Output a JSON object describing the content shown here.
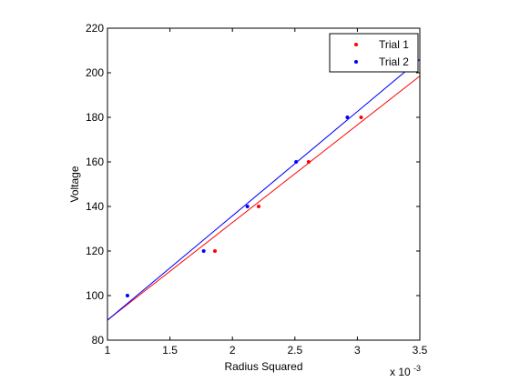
{
  "chart_data": {
    "type": "scatter",
    "title": "",
    "xlabel": "Radius Squared",
    "ylabel": "Voltage",
    "x_multiplier_label": "x 10",
    "x_multiplier_exponent": "-3",
    "xlim": [
      1,
      3.5
    ],
    "ylim": [
      80,
      220
    ],
    "xticks": [
      1,
      1.5,
      2,
      2.5,
      3,
      3.5
    ],
    "xtick_labels": [
      "1",
      "1.5",
      "2",
      "2.5",
      "3",
      "3.5"
    ],
    "yticks": [
      80,
      100,
      120,
      140,
      160,
      180,
      200,
      220
    ],
    "ytick_labels": [
      "80",
      "100",
      "120",
      "140",
      "160",
      "180",
      "200",
      "220"
    ],
    "grid": false,
    "legend_position": "top-right",
    "series": [
      {
        "name": "Trial 1",
        "color": "#ff0000",
        "x": [
          1.86,
          2.21,
          2.61,
          3.03
        ],
        "y": [
          120,
          140,
          160,
          180
        ],
        "fit_line": {
          "x": [
            1.0,
            3.5
          ],
          "y": [
            89.0,
            198.5
          ]
        }
      },
      {
        "name": "Trial 2",
        "color": "#0000ff",
        "x": [
          1.16,
          1.77,
          2.12,
          2.51,
          2.92
        ],
        "y": [
          100,
          120,
          140,
          160,
          180
        ],
        "fit_line": {
          "x": [
            1.0,
            3.5
          ],
          "y": [
            89.0,
            206.0
          ]
        }
      }
    ]
  }
}
